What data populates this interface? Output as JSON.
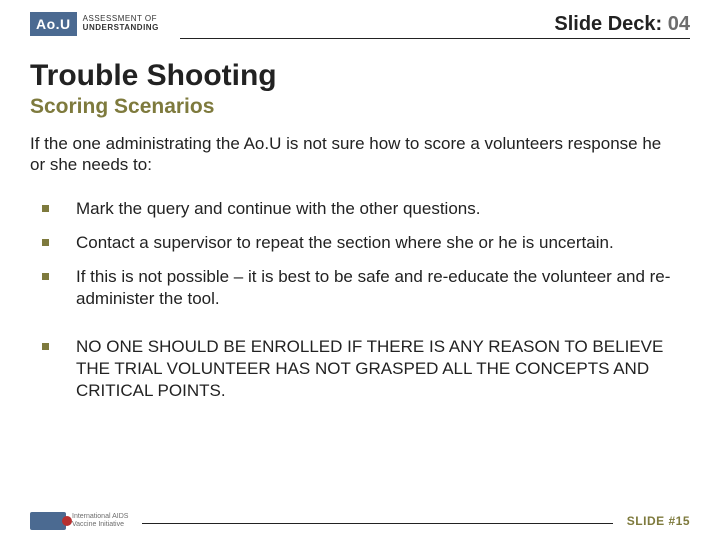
{
  "header": {
    "logo_badge": "Ao.U",
    "logo_line1": "ASSESSMENT OF",
    "logo_line2": "UNDERSTANDING",
    "deck_label": "Slide Deck: ",
    "deck_number": "04"
  },
  "title": "Trouble Shooting",
  "subtitle": "Scoring Scenarios",
  "intro": "If the one administrating the Ao.U is not sure how to score a volunteers response he or she needs to:",
  "bullets": [
    "Mark the query and continue with the other questions.",
    "Contact a supervisor to repeat the section where she or he is uncertain.",
    "If this is not possible – it is best to be safe and re-educate the volunteer and re-administer the tool.",
    "NO ONE SHOULD BE ENROLLED IF THERE IS ANY REASON TO BELIEVE THE TRIAL VOLUNTEER HAS NOT GRASPED ALL THE CONCEPTS AND CRITICAL POINTS."
  ],
  "footer": {
    "org_line1": "International AIDS",
    "org_line2": "Vaccine Initiative",
    "slide_num": "SLIDE #15"
  },
  "colors": {
    "accent_olive": "#7e7a3d",
    "badge_blue": "#4b6a91",
    "text": "#222222",
    "deck_num_gray": "#6d6d6d"
  }
}
